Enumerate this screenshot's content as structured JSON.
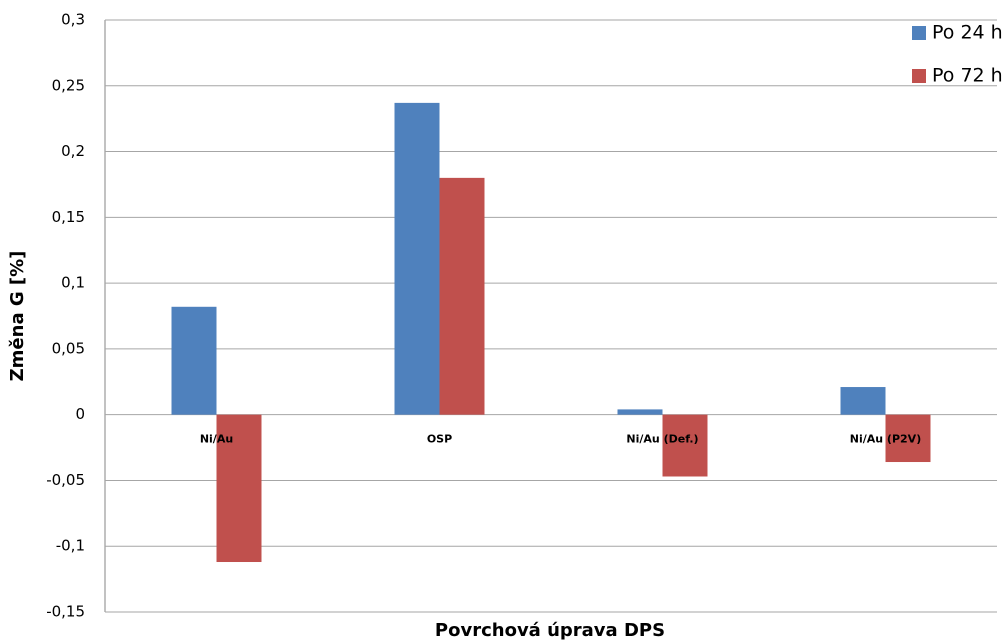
{
  "chart_data": {
    "type": "bar",
    "ylabel": "Změna G [%]",
    "xlabel": "Povrchová úprava DPS",
    "categories": [
      "Ni/Au",
      "OSP",
      "Ni/Au (Def.)",
      "Ni/Au (P2V)"
    ],
    "series": [
      {
        "name": "Po 24 h",
        "color": "#4f81bd",
        "values": [
          0.082,
          0.237,
          0.004,
          0.021
        ]
      },
      {
        "name": "Po 72 h",
        "color": "#c0504d",
        "values": [
          -0.112,
          0.18,
          -0.047,
          -0.036
        ]
      }
    ],
    "ylim": [
      -0.15,
      0.3
    ],
    "yticks": [
      {
        "value": -0.15,
        "label": "-0,15"
      },
      {
        "value": -0.1,
        "label": "-0,1"
      },
      {
        "value": -0.05,
        "label": "-0,05"
      },
      0,
      {
        "value": 0.05,
        "label": "0,05"
      },
      {
        "value": 0.1,
        "label": "0,1"
      },
      {
        "value": 0.15,
        "label": "0,15"
      },
      {
        "value": 0.2,
        "label": "0,2"
      },
      {
        "value": 0.25,
        "label": "0,25"
      },
      {
        "value": 0.3,
        "label": "0,3"
      }
    ],
    "grid": true,
    "legend": "top-right"
  }
}
